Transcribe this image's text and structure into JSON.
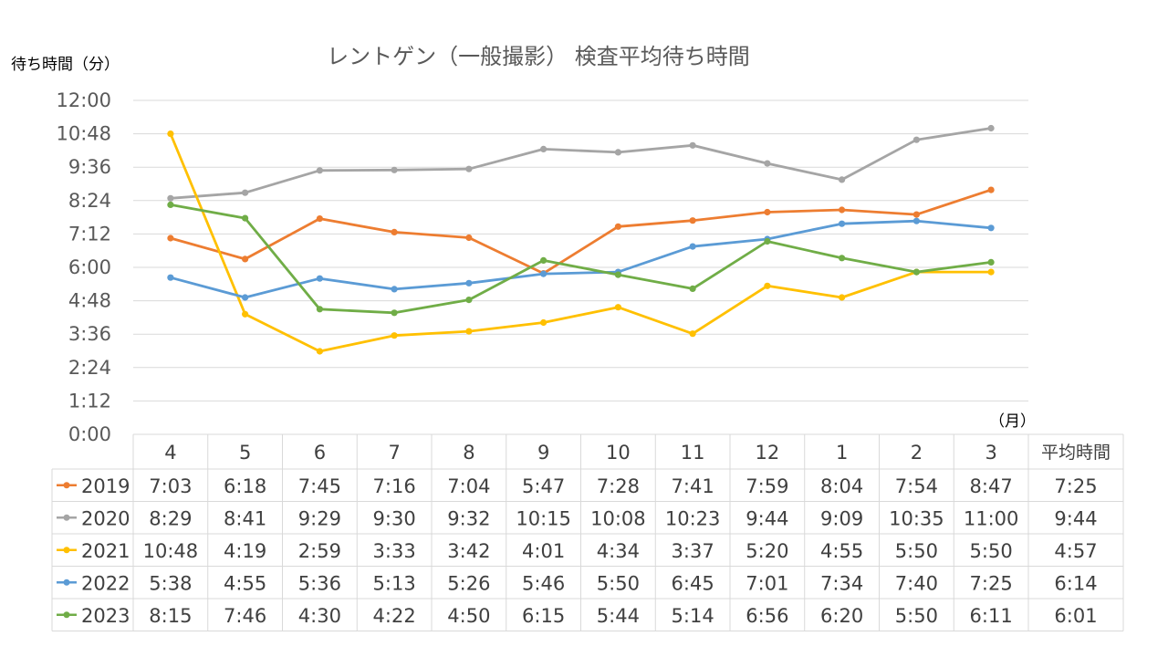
{
  "chart_data": {
    "type": "line",
    "title": "レントゲン（一般撮影） 検査平均待ち時間",
    "ylabel": "待ち時間（分）",
    "xlabel": "（月）",
    "ylim": [
      0,
      720
    ],
    "y_ticks": [
      {
        "value": 0,
        "label": "0:00"
      },
      {
        "value": 72,
        "label": "1:12"
      },
      {
        "value": 144,
        "label": "2:24"
      },
      {
        "value": 216,
        "label": "3:36"
      },
      {
        "value": 288,
        "label": "4:48"
      },
      {
        "value": 360,
        "label": "6:00"
      },
      {
        "value": 432,
        "label": "7:12"
      },
      {
        "value": 504,
        "label": "8:24"
      },
      {
        "value": 576,
        "label": "9:36"
      },
      {
        "value": 648,
        "label": "10:48"
      },
      {
        "value": 720,
        "label": "12:00"
      }
    ],
    "categories": [
      "4",
      "5",
      "6",
      "7",
      "8",
      "9",
      "10",
      "11",
      "12",
      "1",
      "2",
      "3"
    ],
    "average_header": "平均時間",
    "grid": true,
    "legend": "table-below",
    "series": [
      {
        "name": "2019",
        "color": "#ED7D31",
        "labels": [
          "7:03",
          "6:18",
          "7:45",
          "7:16",
          "7:04",
          "5:47",
          "7:28",
          "7:41",
          "7:59",
          "8:04",
          "7:54",
          "8:47"
        ],
        "average": "7:25"
      },
      {
        "name": "2020",
        "color": "#A5A5A5",
        "labels": [
          "8:29",
          "8:41",
          "9:29",
          "9:30",
          "9:32",
          "10:15",
          "10:08",
          "10:23",
          "9:44",
          "9:09",
          "10:35",
          "11:00"
        ],
        "average": "9:44"
      },
      {
        "name": "2021",
        "color": "#FFC000",
        "labels": [
          "10:48",
          "4:19",
          "2:59",
          "3:33",
          "3:42",
          "4:01",
          "4:34",
          "3:37",
          "5:20",
          "4:55",
          "5:50",
          "5:50"
        ],
        "average": "4:57"
      },
      {
        "name": "2022",
        "color": "#5B9BD5",
        "labels": [
          "5:38",
          "4:55",
          "5:36",
          "5:13",
          "5:26",
          "5:46",
          "5:50",
          "6:45",
          "7:01",
          "7:34",
          "7:40",
          "7:25"
        ],
        "average": "6:14"
      },
      {
        "name": "2023",
        "color": "#70AD47",
        "labels": [
          "8:15",
          "7:46",
          "4:30",
          "4:22",
          "4:50",
          "6:15",
          "5:44",
          "5:14",
          "6:56",
          "6:20",
          "5:50",
          "6:11"
        ],
        "average": "6:01"
      }
    ]
  }
}
